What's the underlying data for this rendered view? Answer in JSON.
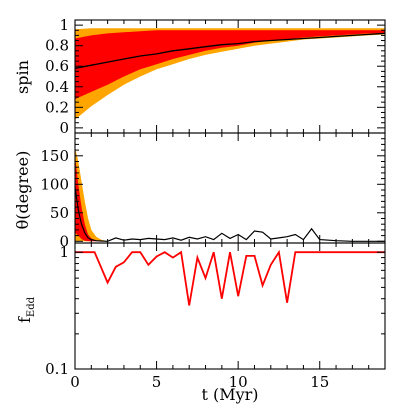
{
  "chart_data": [
    {
      "panel": "top",
      "type": "area",
      "ylabel": "spin",
      "xlim": [
        0,
        19
      ],
      "ylim": [
        -0.05,
        1.05
      ],
      "yticks": [
        0,
        0.2,
        0.4,
        0.6,
        0.8,
        1
      ],
      "ytick_labels": [
        "0",
        "0.2",
        "0.4",
        "0.6",
        "0.8",
        "1"
      ],
      "colors": {
        "outer_band": "#ffa500",
        "inner_band": "#ff0000",
        "median": "#000000"
      },
      "outer_band": {
        "x": [
          0,
          1,
          2,
          3,
          4,
          5,
          6,
          7,
          8,
          9,
          10,
          11,
          12,
          13,
          14,
          15,
          16,
          17,
          18,
          19
        ],
        "lower": [
          0.08,
          0.21,
          0.32,
          0.42,
          0.5,
          0.57,
          0.62,
          0.67,
          0.71,
          0.74,
          0.77,
          0.8,
          0.82,
          0.84,
          0.86,
          0.87,
          0.88,
          0.89,
          0.9,
          0.91
        ],
        "upper": [
          0.96,
          0.97,
          0.97,
          0.97,
          0.97,
          0.97,
          0.97,
          0.97,
          0.97,
          0.97,
          0.97,
          0.97,
          0.97,
          0.97,
          0.97,
          0.97,
          0.97,
          0.97,
          0.97,
          0.97
        ]
      },
      "inner_band": {
        "x": [
          0,
          1,
          2,
          3,
          4,
          5,
          6,
          7,
          8,
          9,
          10,
          11,
          12,
          13,
          14,
          15,
          16,
          17,
          18,
          19
        ],
        "lower": [
          0.28,
          0.35,
          0.42,
          0.5,
          0.57,
          0.62,
          0.67,
          0.71,
          0.75,
          0.78,
          0.8,
          0.83,
          0.85,
          0.86,
          0.88,
          0.89,
          0.9,
          0.91,
          0.92,
          0.92
        ],
        "upper": [
          0.87,
          0.9,
          0.92,
          0.93,
          0.94,
          0.95,
          0.95,
          0.95,
          0.95,
          0.95,
          0.95,
          0.95,
          0.95,
          0.95,
          0.95,
          0.95,
          0.95,
          0.95,
          0.95,
          0.95
        ]
      },
      "series": [
        {
          "x": [
            0,
            1,
            2,
            3,
            4,
            5,
            6,
            7,
            8,
            9,
            10,
            11,
            12,
            13,
            14,
            15,
            16,
            17,
            18,
            19
          ],
          "values": [
            0.58,
            0.61,
            0.64,
            0.67,
            0.7,
            0.72,
            0.75,
            0.77,
            0.79,
            0.81,
            0.82,
            0.84,
            0.85,
            0.86,
            0.87,
            0.88,
            0.89,
            0.9,
            0.91,
            0.92
          ]
        }
      ]
    },
    {
      "panel": "middle",
      "type": "area",
      "ylabel": "θ(degree)",
      "xlim": [
        0,
        19
      ],
      "ylim": [
        -3,
        190
      ],
      "yticks": [
        0,
        50,
        100,
        150
      ],
      "ytick_labels": [
        "0",
        "50",
        "100",
        "150"
      ],
      "colors": {
        "outer_band": "#ffa500",
        "inner_band": "#ff0000",
        "median": "#000000"
      },
      "outer_band": {
        "x": [
          0,
          0.2,
          0.4,
          0.6,
          0.8,
          1.0,
          1.3,
          1.6,
          2.0
        ],
        "lower": [
          0,
          0,
          0,
          0,
          0,
          0,
          0,
          0,
          0
        ],
        "upper": [
          165,
          140,
          105,
          70,
          40,
          20,
          8,
          3,
          0
        ]
      },
      "inner_band": {
        "x": [
          0,
          0.2,
          0.4,
          0.6,
          0.8,
          1.0,
          1.3,
          1.6
        ],
        "lower": [
          15,
          10,
          4,
          1,
          0,
          0,
          0,
          0
        ],
        "upper": [
          150,
          100,
          60,
          30,
          12,
          5,
          1,
          0
        ]
      },
      "series": [
        {
          "x": [
            0,
            0.2,
            0.4,
            0.6,
            0.8,
            1.0,
            1.3,
            1.6,
            2.0,
            2.5,
            3,
            3.5,
            4,
            4.5,
            5,
            5.5,
            6,
            6.5,
            7,
            7.5,
            8,
            8.5,
            9,
            9.5,
            10,
            10.5,
            11,
            11.5,
            12,
            12.5,
            13,
            13.5,
            14,
            14.5,
            15,
            16,
            17,
            18,
            19
          ],
          "values": [
            95,
            55,
            30,
            15,
            6,
            3,
            1,
            0.5,
            0,
            6,
            2,
            4,
            3,
            5,
            4,
            3,
            6,
            2,
            7,
            4,
            8,
            3,
            14,
            5,
            12,
            3,
            18,
            16,
            4,
            6,
            8,
            12,
            3,
            22,
            3,
            1,
            0,
            0,
            0
          ]
        }
      ]
    },
    {
      "panel": "bottom",
      "type": "line",
      "ylabel": "f",
      "ylabel_subscript": "Edd",
      "xlabel": "t (Myr)",
      "xlim": [
        0,
        19
      ],
      "ylim": [
        0.1,
        1.2
      ],
      "yscale": "log",
      "yticks": [
        0.1,
        1
      ],
      "ytick_labels": [
        "0.1",
        "1"
      ],
      "xticks": [
        0,
        5,
        10,
        15
      ],
      "xtick_labels": [
        "0",
        "5",
        "10",
        "15"
      ],
      "colors": {
        "line": "#ff0000"
      },
      "series": [
        {
          "x": [
            0,
            1.2,
            2.0,
            2.5,
            3.0,
            3.5,
            4.0,
            4.5,
            5.0,
            5.5,
            6.0,
            6.5,
            7.0,
            7.5,
            8.0,
            8.5,
            9.0,
            9.5,
            10.0,
            10.5,
            11.0,
            11.5,
            12.0,
            12.5,
            13.0,
            13.5,
            14.0,
            15.0,
            16.0,
            17.0,
            18.0,
            19.0
          ],
          "values": [
            1.0,
            1.0,
            0.55,
            0.75,
            0.82,
            1.0,
            1.0,
            0.78,
            0.92,
            1.0,
            0.9,
            1.0,
            0.35,
            0.9,
            0.6,
            1.0,
            0.4,
            1.0,
            0.42,
            0.93,
            0.93,
            0.52,
            0.78,
            1.0,
            0.37,
            1.0,
            1.0,
            1.0,
            1.0,
            1.0,
            1.0,
            1.0
          ]
        }
      ]
    }
  ]
}
